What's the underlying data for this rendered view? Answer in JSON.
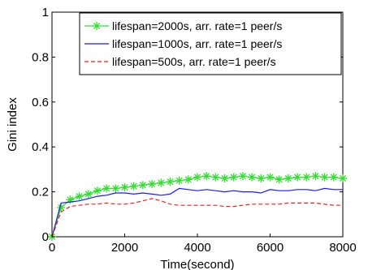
{
  "chart_data": {
    "type": "line",
    "title": "",
    "xlabel": "Time(second)",
    "ylabel": "Gini index",
    "xlim": [
      0,
      8000
    ],
    "ylim": [
      0,
      1
    ],
    "x_ticks": [
      0,
      2000,
      4000,
      6000,
      8000
    ],
    "y_ticks": [
      0,
      0.2,
      0.4,
      0.6,
      0.8,
      1
    ],
    "x_tick_labels": [
      "0",
      "2000",
      "4000",
      "6000",
      "8000"
    ],
    "y_tick_labels": [
      "0",
      "0.2",
      "0.4",
      "0.6",
      "0.8",
      "1"
    ],
    "grid": false,
    "legend_position": "top-right",
    "series": [
      {
        "name": "lifespan=2000s, arr. rate=1 peer/s",
        "color": "#33dd33",
        "line_style": "solid",
        "marker": "asterisk",
        "x": [
          0,
          250,
          500,
          750,
          1000,
          1250,
          1500,
          1750,
          2000,
          2250,
          2500,
          2750,
          3000,
          3250,
          3500,
          3750,
          4000,
          4250,
          4500,
          4750,
          5000,
          5250,
          5500,
          5750,
          6000,
          6250,
          6500,
          6750,
          7000,
          7250,
          7500,
          7750,
          8000
        ],
        "y": [
          0.0,
          0.13,
          0.165,
          0.18,
          0.19,
          0.205,
          0.215,
          0.215,
          0.22,
          0.225,
          0.23,
          0.235,
          0.24,
          0.245,
          0.25,
          0.255,
          0.265,
          0.27,
          0.265,
          0.26,
          0.265,
          0.27,
          0.265,
          0.26,
          0.265,
          0.255,
          0.26,
          0.265,
          0.265,
          0.27,
          0.265,
          0.265,
          0.26
        ]
      },
      {
        "name": "lifespan=1000s, arr. rate=1 peer/s",
        "color": "#1a1aee",
        "line_style": "solid",
        "marker": "none",
        "x": [
          0,
          250,
          500,
          750,
          1000,
          1250,
          1500,
          1750,
          2000,
          2250,
          2500,
          2750,
          3000,
          3250,
          3500,
          3750,
          4000,
          4250,
          4500,
          4750,
          5000,
          5250,
          5500,
          5750,
          6000,
          6250,
          6500,
          6750,
          7000,
          7250,
          7500,
          7750,
          8000
        ],
        "y": [
          0.0,
          0.15,
          0.155,
          0.16,
          0.17,
          0.18,
          0.185,
          0.195,
          0.195,
          0.19,
          0.195,
          0.19,
          0.185,
          0.19,
          0.215,
          0.21,
          0.205,
          0.21,
          0.205,
          0.2,
          0.205,
          0.2,
          0.2,
          0.195,
          0.21,
          0.205,
          0.205,
          0.21,
          0.21,
          0.205,
          0.215,
          0.21,
          0.21
        ]
      },
      {
        "name": "lifespan=500s, arr. rate=1 peer/s",
        "color": "#ee2222",
        "line_style": "dashed",
        "marker": "none",
        "x": [
          0,
          250,
          500,
          750,
          1000,
          1250,
          1500,
          1750,
          2000,
          2250,
          2500,
          2750,
          3000,
          3250,
          3500,
          3750,
          4000,
          4250,
          4500,
          4750,
          5000,
          5250,
          5500,
          5750,
          6000,
          6250,
          6500,
          6750,
          7000,
          7250,
          7500,
          7750,
          8000
        ],
        "y": [
          0.0,
          0.11,
          0.135,
          0.14,
          0.145,
          0.145,
          0.15,
          0.145,
          0.145,
          0.15,
          0.16,
          0.17,
          0.16,
          0.145,
          0.14,
          0.14,
          0.14,
          0.14,
          0.14,
          0.135,
          0.135,
          0.14,
          0.145,
          0.145,
          0.145,
          0.145,
          0.15,
          0.15,
          0.15,
          0.15,
          0.145,
          0.14,
          0.14
        ]
      }
    ]
  }
}
